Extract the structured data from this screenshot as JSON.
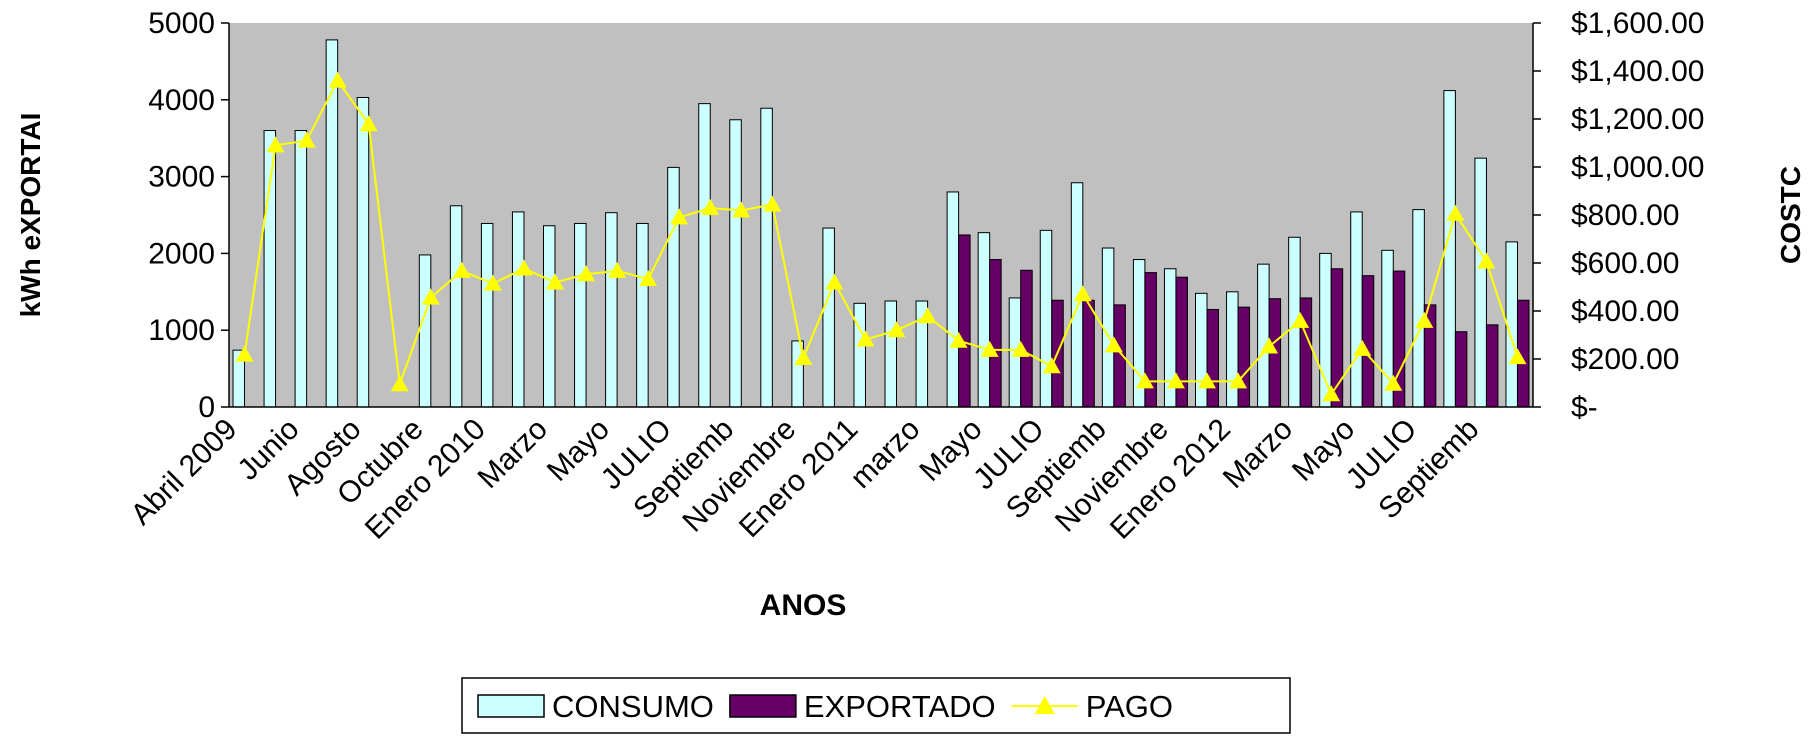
{
  "chart_data": {
    "type": "bar-line",
    "x_label": "ANOS",
    "y_label": "kWh eXPORTAI",
    "y2_label": "COSTC",
    "categories": [
      "Abril 2009",
      null,
      "Junio",
      null,
      "Agosto",
      null,
      "Octubre",
      null,
      "Enero 2010",
      null,
      "Marzo",
      null,
      "Mayo",
      null,
      "JULIO",
      null,
      "Septiemb",
      null,
      "Noviembre",
      null,
      "Enero 2011",
      null,
      "marzo",
      null,
      "Mayo",
      null,
      "JULIO",
      null,
      "Septiemb",
      null,
      "Noviembre",
      null,
      "Enero 2012",
      null,
      "Marzo",
      null,
      "Mayo",
      null,
      "JULIO",
      null,
      "Septiemb",
      null
    ],
    "series": [
      {
        "name": "CONSUMO",
        "type": "bar",
        "color": "#ccffff",
        "values": [
          740,
          3600,
          3600,
          4780,
          4030,
          0,
          1980,
          2620,
          2390,
          2540,
          2360,
          2390,
          2530,
          2390,
          3120,
          3950,
          3740,
          3890,
          860,
          2330,
          1350,
          1380,
          1380,
          2800,
          2270,
          1420,
          2300,
          2920,
          2070,
          1920,
          1800,
          1480,
          1500,
          1860,
          2210,
          2000,
          2540,
          2040,
          2570,
          4120,
          3240,
          2150
        ]
      },
      {
        "name": "EXPORTADO",
        "type": "bar",
        "color": "#660066",
        "values": [
          null,
          null,
          null,
          null,
          null,
          null,
          null,
          null,
          null,
          null,
          null,
          null,
          null,
          null,
          null,
          null,
          null,
          null,
          null,
          null,
          null,
          null,
          null,
          2240,
          1920,
          1780,
          1390,
          1390,
          1330,
          1750,
          1690,
          1270,
          1300,
          1410,
          1420,
          1800,
          1710,
          1770,
          1330,
          980,
          1070,
          1390
        ]
      },
      {
        "name": "PAGO",
        "type": "line",
        "axis": "y2",
        "color": "#ffff00",
        "values": [
          218,
          1090,
          1110,
          1360,
          1178,
          95,
          456,
          567,
          514,
          577,
          519,
          553,
          567,
          533,
          790,
          829,
          819,
          844,
          204,
          519,
          281,
          320,
          378,
          276,
          238,
          238,
          170,
          470,
          257,
          107,
          107,
          107,
          107,
          252,
          359,
          53,
          242,
          97,
          359,
          805,
          606,
          208
        ]
      }
    ],
    "ylim": [
      0,
      5000
    ],
    "yticks": [
      0,
      1000,
      2000,
      3000,
      4000,
      5000
    ],
    "y2lim": [
      0,
      1600
    ],
    "y2ticks": [
      {
        "value": 0,
        "label": "$-"
      },
      {
        "value": 200,
        "label": "$200.00"
      },
      {
        "value": 400,
        "label": "$400.00"
      },
      {
        "value": 600,
        "label": "$600.00"
      },
      {
        "value": 800,
        "label": "$800.00"
      },
      {
        "value": 1000,
        "label": "$1,000.00"
      },
      {
        "value": 1200,
        "label": "$1,200.00"
      },
      {
        "value": 1400,
        "label": "$1,400.00"
      },
      {
        "value": 1600,
        "label": "$1,600.00"
      }
    ],
    "plot_background": "#c0c0c0",
    "legend": "bottom"
  }
}
